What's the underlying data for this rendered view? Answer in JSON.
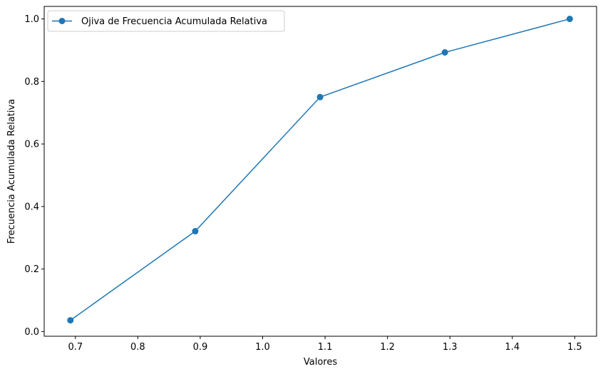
{
  "chart_data": {
    "type": "line",
    "title": "",
    "xlabel": "Valores",
    "ylabel": "Frecuencia Acumulada Relativa",
    "xlim": [
      0.65,
      1.535
    ],
    "ylim": [
      -0.015,
      1.04
    ],
    "xticks": [
      0.7,
      0.8,
      0.9,
      1.0,
      1.1,
      1.2,
      1.3,
      1.4,
      1.5
    ],
    "xtick_labels": [
      "0.7",
      "0.8",
      "0.9",
      "1.0",
      "1.1",
      "1.2",
      "1.3",
      "1.4",
      "1.5"
    ],
    "yticks": [
      0.0,
      0.2,
      0.4,
      0.6,
      0.8,
      1.0
    ],
    "ytick_labels": [
      "0.0",
      "0.2",
      "0.4",
      "0.6",
      "0.8",
      "1.0"
    ],
    "grid": false,
    "legend_position": "top-left",
    "series": [
      {
        "name": "Ojiva de Frecuencia Acumulada Relativa",
        "color": "#1f77b4",
        "marker": "circle",
        "x": [
          0.692,
          0.892,
          1.092,
          1.292,
          1.492
        ],
        "y": [
          0.036,
          0.321,
          0.75,
          0.893,
          1.0
        ]
      }
    ]
  }
}
